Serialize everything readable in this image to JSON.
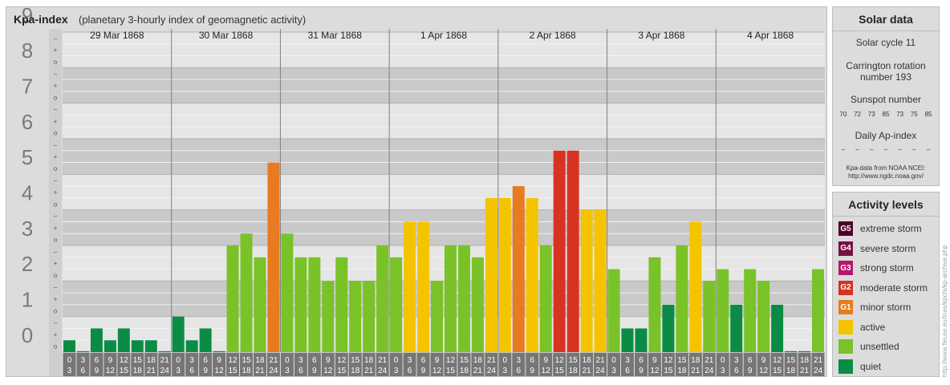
{
  "header": {
    "title": "Kpa-index",
    "subtitle": "(planetary 3-hourly index of geomagnetic activity)"
  },
  "chart_data": {
    "type": "bar",
    "title": "Kpa-index",
    "subtitle": "(planetary 3-hourly index of geomagnetic activity)",
    "ylim": [
      0,
      9
    ],
    "y_ticks": [
      "0",
      "1",
      "2",
      "3",
      "4",
      "5",
      "6",
      "7",
      "8",
      "9"
    ],
    "minor_tick_labels": [
      "o",
      "+",
      "–"
    ],
    "days": [
      "29 Mar 1868",
      "30 Mar 1868",
      "31 Mar 1868",
      "1 Apr 1868",
      "2 Apr 1868",
      "3 Apr 1868",
      "4 Apr 1868"
    ],
    "hour_start_labels": [
      "0",
      "3",
      "6",
      "9",
      "12",
      "15",
      "18",
      "21"
    ],
    "hour_end_labels": [
      "3",
      "6",
      "9",
      "12",
      "15",
      "18",
      "21",
      "24"
    ],
    "values": [
      0.333,
      0.0,
      0.667,
      0.333,
      0.667,
      0.333,
      0.333,
      0.0,
      1.0,
      0.333,
      0.667,
      0.0,
      3.0,
      3.333,
      2.667,
      5.333,
      3.333,
      2.667,
      2.667,
      2.0,
      2.667,
      2.0,
      2.0,
      3.0,
      2.667,
      3.667,
      3.667,
      2.0,
      3.0,
      3.0,
      2.667,
      4.333,
      4.333,
      4.667,
      4.333,
      3.0,
      5.667,
      5.667,
      4.0,
      4.0,
      2.333,
      0.667,
      0.667,
      2.667,
      1.333,
      3.0,
      3.667,
      2.0,
      2.333,
      1.333,
      2.333,
      2.0,
      1.333,
      0.0,
      0.0,
      2.333
    ],
    "grid": true,
    "legend": "right-side panel"
  },
  "solar": {
    "title": "Solar data",
    "cycle": "Solar cycle 11",
    "carrington_line1": "Carrington rotation",
    "carrington_line2": "number 193",
    "sunspot_label": "Sunspot number",
    "sunspot_values": [
      "70",
      "72",
      "73",
      "85",
      "73",
      "75",
      "85"
    ],
    "ap_label": "Daily Ap-index",
    "ap_values": [
      "–",
      "–",
      "–",
      "–",
      "–",
      "–",
      "–"
    ],
    "source_line1": "Kpa-data from NOAA NCEI:",
    "source_line2": "http://www.ngdc.noaa.gov/"
  },
  "levels": {
    "title": "Activity levels",
    "items": [
      {
        "code": "G5",
        "label": "extreme storm",
        "color": "#4d0026"
      },
      {
        "code": "G4",
        "label": "severe storm",
        "color": "#7a0f46"
      },
      {
        "code": "G3",
        "label": "strong storm",
        "color": "#b4186a"
      },
      {
        "code": "G2",
        "label": "moderate storm",
        "color": "#d83222"
      },
      {
        "code": "G1",
        "label": "minor storm",
        "color": "#e87a20"
      },
      {
        "code": "",
        "label": "active",
        "color": "#f5c400"
      },
      {
        "code": "",
        "label": "unsettled",
        "color": "#79c228"
      },
      {
        "code": "",
        "label": "quiet",
        "color": "#0b8c45"
      }
    ]
  },
  "watermark": "http://www.fleuse.eu/Ines/kpchi/kp-archive.php"
}
